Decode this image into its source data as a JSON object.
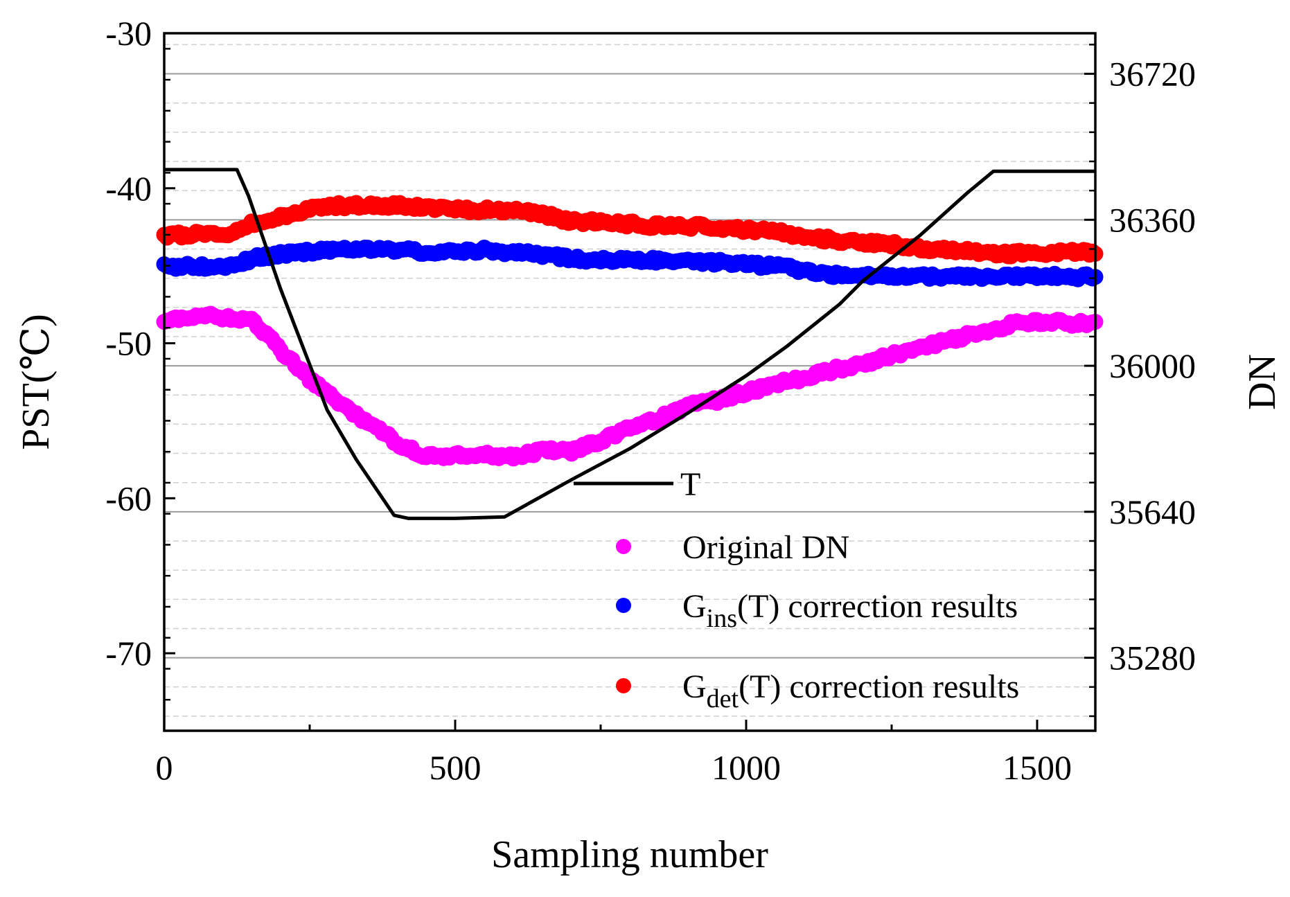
{
  "chart_data": {
    "type": "scatter",
    "title": "",
    "xlabel": "Sampling number",
    "ylabel_left": "PST(℃)",
    "ylabel_right": "DN",
    "xlim": [
      0,
      1600
    ],
    "ylim_left": [
      -75,
      -30
    ],
    "ylim_right": [
      35100,
      36820
    ],
    "x_ticks": [
      0,
      500,
      1000,
      1500
    ],
    "x_tick_labels": [
      "0",
      "500",
      "1000",
      "1500"
    ],
    "y_left_ticks": [
      -30,
      -40,
      -50,
      -60,
      -70
    ],
    "y_left_tick_labels": [
      "-30",
      "-40",
      "-50",
      "-60",
      "-70"
    ],
    "y_right_ticks": [
      36720,
      36360,
      36000,
      35640,
      35280
    ],
    "y_right_tick_labels": [
      "36720",
      "36360",
      "36000",
      "35640",
      "35280"
    ],
    "grid": true,
    "legend_position": "bottom-right",
    "series": [
      {
        "name": "T",
        "legend_label": "T",
        "type": "line",
        "axis": "left",
        "color": "#000000",
        "x": [
          0,
          125,
          145,
          200,
          280,
          330,
          395,
          420,
          500,
          585,
          700,
          800,
          900,
          1000,
          1070,
          1160,
          1200,
          1300,
          1380,
          1425,
          1500,
          1600
        ],
        "y": [
          -38.8,
          -38.8,
          -40.5,
          -46.5,
          -54.3,
          -57.5,
          -61.1,
          -61.3,
          -61.3,
          -61.2,
          -58.8,
          -56.8,
          -54.5,
          -52.1,
          -50.2,
          -47.5,
          -46,
          -43,
          -40.3,
          -38.9,
          -38.9,
          -38.9
        ]
      },
      {
        "name": "Original DN",
        "legend_label": "Original DN",
        "type": "scatter",
        "axis": "right",
        "color": "#ff00ff",
        "x": [
          0,
          60,
          150,
          200,
          250,
          300,
          350,
          400,
          450,
          500,
          550,
          600,
          650,
          700,
          750,
          800,
          850,
          900,
          950,
          1000,
          1050,
          1100,
          1150,
          1200,
          1250,
          1300,
          1350,
          1400,
          1450,
          1500,
          1550,
          1600
        ],
        "y": [
          36110,
          36125,
          36110,
          36040,
          35965,
          35910,
          35860,
          35810,
          35775,
          35780,
          35780,
          35775,
          35790,
          35790,
          35815,
          35845,
          35870,
          35900,
          35915,
          35935,
          35955,
          35970,
          35990,
          36005,
          36025,
          36045,
          36065,
          36080,
          36100,
          36110,
          36105,
          36105
        ]
      },
      {
        "name": "Gins(T) correction results",
        "legend_label": "G",
        "legend_sub": "ins",
        "legend_tail": "(T) correction results",
        "type": "scatter",
        "axis": "right",
        "color": "#0000ff",
        "x": [
          0,
          60,
          120,
          150,
          200,
          250,
          300,
          350,
          400,
          450,
          500,
          550,
          600,
          650,
          700,
          750,
          800,
          850,
          900,
          950,
          1000,
          1050,
          1100,
          1150,
          1200,
          1250,
          1300,
          1350,
          1400,
          1450,
          1500,
          1550,
          1600
        ],
        "y": [
          36245,
          36245,
          36245,
          36265,
          36275,
          36280,
          36290,
          36290,
          36285,
          36280,
          36285,
          36285,
          36280,
          36275,
          36265,
          36260,
          36260,
          36260,
          36260,
          36255,
          36250,
          36245,
          36235,
          36225,
          36220,
          36220,
          36220,
          36220,
          36220,
          36220,
          36220,
          36220,
          36220
        ]
      },
      {
        "name": "Gdet(T) correction results",
        "legend_label": "G",
        "legend_sub": "det",
        "legend_tail": "(T) correction results",
        "type": "scatter",
        "axis": "right",
        "color": "#ff0000",
        "x": [
          0,
          60,
          120,
          150,
          200,
          250,
          300,
          350,
          400,
          450,
          500,
          550,
          600,
          650,
          700,
          750,
          800,
          850,
          900,
          950,
          1000,
          1050,
          1100,
          1150,
          1200,
          1250,
          1300,
          1350,
          1400,
          1450,
          1500,
          1550,
          1600
        ],
        "y": [
          36320,
          36325,
          36325,
          36350,
          36370,
          36385,
          36395,
          36395,
          36395,
          36390,
          36385,
          36385,
          36385,
          36375,
          36355,
          36355,
          36350,
          36345,
          36345,
          36340,
          36335,
          36330,
          36320,
          36310,
          36305,
          36300,
          36290,
          36285,
          36280,
          36275,
          36280,
          36280,
          36280
        ]
      }
    ]
  }
}
